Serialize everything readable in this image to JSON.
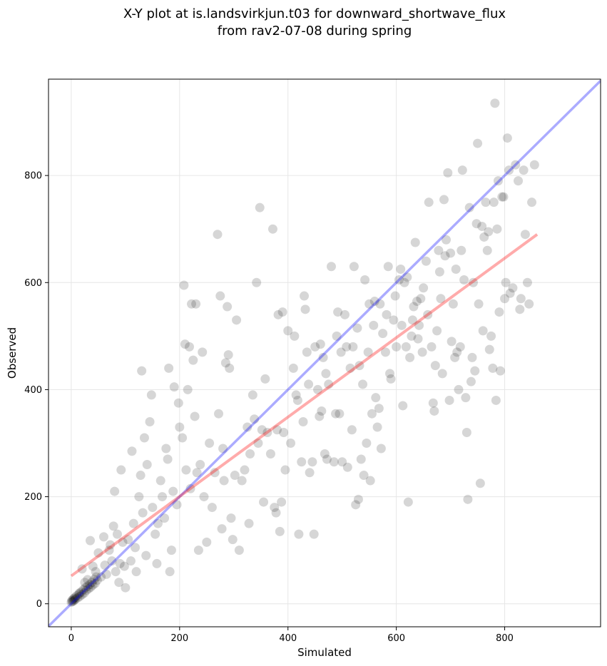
{
  "chart_data": {
    "type": "scatter",
    "title": "X-Y plot at is.landsvirkjun.t03 for downward_shortwave_flux",
    "subtitle": "from rav2-07-08 during spring",
    "xlabel": "Simulated",
    "ylabel": "Observed",
    "xlim": [
      -42,
      977
    ],
    "ylim": [
      -43,
      980
    ],
    "xticks": [
      0,
      200,
      400,
      600,
      800
    ],
    "yticks": [
      0,
      200,
      400,
      600,
      800
    ],
    "grid": true,
    "point_color": "#000000",
    "one_to_one_line": {
      "x": [
        -42,
        977
      ],
      "y": [
        -42,
        977
      ],
      "color": "#0000ff"
    },
    "fit_line": {
      "x": [
        0,
        860
      ],
      "y": [
        52,
        690
      ],
      "color": "#ff0000"
    },
    "points": [
      [
        0,
        3
      ],
      [
        1,
        6
      ],
      [
        2,
        4
      ],
      [
        3,
        8
      ],
      [
        4,
        5
      ],
      [
        5,
        10
      ],
      [
        6,
        7
      ],
      [
        7,
        12
      ],
      [
        8,
        9
      ],
      [
        10,
        15
      ],
      [
        12,
        11
      ],
      [
        14,
        18
      ],
      [
        15,
        20
      ],
      [
        16,
        14
      ],
      [
        18,
        22
      ],
      [
        20,
        17
      ],
      [
        22,
        26
      ],
      [
        24,
        20
      ],
      [
        26,
        30
      ],
      [
        28,
        25
      ],
      [
        30,
        33
      ],
      [
        32,
        28
      ],
      [
        34,
        36
      ],
      [
        36,
        31
      ],
      [
        38,
        40
      ],
      [
        40,
        35
      ],
      [
        42,
        45
      ],
      [
        44,
        38
      ],
      [
        46,
        50
      ],
      [
        48,
        44
      ],
      [
        20,
        65
      ],
      [
        25,
        40
      ],
      [
        30,
        45
      ],
      [
        35,
        118
      ],
      [
        40,
        70
      ],
      [
        45,
        60
      ],
      [
        50,
        95
      ],
      [
        55,
        50
      ],
      [
        60,
        125
      ],
      [
        62,
        72
      ],
      [
        65,
        55
      ],
      [
        70,
        100
      ],
      [
        72,
        110
      ],
      [
        75,
        80
      ],
      [
        78,
        145
      ],
      [
        80,
        210
      ],
      [
        82,
        60
      ],
      [
        85,
        130
      ],
      [
        88,
        40
      ],
      [
        90,
        75
      ],
      [
        92,
        250
      ],
      [
        95,
        115
      ],
      [
        98,
        70
      ],
      [
        100,
        30
      ],
      [
        105,
        120
      ],
      [
        110,
        80
      ],
      [
        112,
        285
      ],
      [
        115,
        150
      ],
      [
        118,
        105
      ],
      [
        120,
        60
      ],
      [
        125,
        200
      ],
      [
        128,
        240
      ],
      [
        130,
        435
      ],
      [
        132,
        170
      ],
      [
        135,
        310
      ],
      [
        138,
        90
      ],
      [
        140,
        260
      ],
      [
        145,
        340
      ],
      [
        148,
        390
      ],
      [
        150,
        180
      ],
      [
        155,
        130
      ],
      [
        158,
        75
      ],
      [
        160,
        150
      ],
      [
        165,
        230
      ],
      [
        168,
        200
      ],
      [
        172,
        160
      ],
      [
        175,
        290
      ],
      [
        178,
        270
      ],
      [
        180,
        440
      ],
      [
        182,
        60
      ],
      [
        185,
        100
      ],
      [
        188,
        210
      ],
      [
        190,
        405
      ],
      [
        195,
        185
      ],
      [
        198,
        375
      ],
      [
        200,
        330
      ],
      [
        205,
        310
      ],
      [
        208,
        595
      ],
      [
        210,
        485
      ],
      [
        212,
        250
      ],
      [
        215,
        400
      ],
      [
        218,
        480
      ],
      [
        220,
        215
      ],
      [
        222,
        560
      ],
      [
        225,
        455
      ],
      [
        228,
        350
      ],
      [
        230,
        560
      ],
      [
        232,
        245
      ],
      [
        235,
        100
      ],
      [
        238,
        260
      ],
      [
        242,
        470
      ],
      [
        245,
        200
      ],
      [
        250,
        115
      ],
      [
        255,
        300
      ],
      [
        260,
        180
      ],
      [
        265,
        245
      ],
      [
        270,
        690
      ],
      [
        272,
        355
      ],
      [
        275,
        575
      ],
      [
        278,
        140
      ],
      [
        280,
        290
      ],
      [
        282,
        230
      ],
      [
        285,
        450
      ],
      [
        288,
        555
      ],
      [
        290,
        465
      ],
      [
        292,
        440
      ],
      [
        295,
        160
      ],
      [
        298,
        120
      ],
      [
        302,
        240
      ],
      [
        305,
        530
      ],
      [
        310,
        100
      ],
      [
        315,
        230
      ],
      [
        320,
        250
      ],
      [
        325,
        330
      ],
      [
        328,
        150
      ],
      [
        330,
        280
      ],
      [
        335,
        390
      ],
      [
        338,
        345
      ],
      [
        342,
        600
      ],
      [
        345,
        300
      ],
      [
        348,
        740
      ],
      [
        352,
        325
      ],
      [
        355,
        190
      ],
      [
        358,
        420
      ],
      [
        362,
        320
      ],
      [
        368,
        280
      ],
      [
        372,
        700
      ],
      [
        375,
        180
      ],
      [
        378,
        170
      ],
      [
        380,
        325
      ],
      [
        382,
        540
      ],
      [
        385,
        135
      ],
      [
        388,
        190
      ],
      [
        390,
        545
      ],
      [
        392,
        320
      ],
      [
        395,
        250
      ],
      [
        400,
        510
      ],
      [
        405,
        300
      ],
      [
        410,
        440
      ],
      [
        412,
        500
      ],
      [
        415,
        390
      ],
      [
        418,
        380
      ],
      [
        420,
        130
      ],
      [
        425,
        265
      ],
      [
        428,
        340
      ],
      [
        430,
        575
      ],
      [
        432,
        550
      ],
      [
        435,
        470
      ],
      [
        438,
        410
      ],
      [
        440,
        245
      ],
      [
        445,
        265
      ],
      [
        448,
        130
      ],
      [
        450,
        480
      ],
      [
        455,
        400
      ],
      [
        458,
        350
      ],
      [
        460,
        485
      ],
      [
        462,
        360
      ],
      [
        465,
        460
      ],
      [
        468,
        280
      ],
      [
        470,
        430
      ],
      [
        472,
        270
      ],
      [
        475,
        410
      ],
      [
        480,
        630
      ],
      [
        485,
        265
      ],
      [
        488,
        355
      ],
      [
        490,
        500
      ],
      [
        492,
        545
      ],
      [
        495,
        355
      ],
      [
        498,
        470
      ],
      [
        500,
        265
      ],
      [
        505,
        540
      ],
      [
        508,
        480
      ],
      [
        510,
        255
      ],
      [
        515,
        440
      ],
      [
        518,
        325
      ],
      [
        520,
        480
      ],
      [
        522,
        630
      ],
      [
        525,
        185
      ],
      [
        528,
        515
      ],
      [
        530,
        195
      ],
      [
        532,
        445
      ],
      [
        535,
        270
      ],
      [
        538,
        410
      ],
      [
        540,
        240
      ],
      [
        542,
        605
      ],
      [
        545,
        300
      ],
      [
        548,
        470
      ],
      [
        550,
        560
      ],
      [
        552,
        230
      ],
      [
        555,
        355
      ],
      [
        558,
        520
      ],
      [
        560,
        565
      ],
      [
        562,
        385
      ],
      [
        565,
        330
      ],
      [
        568,
        365
      ],
      [
        570,
        560
      ],
      [
        572,
        290
      ],
      [
        575,
        505
      ],
      [
        580,
        470
      ],
      [
        582,
        540
      ],
      [
        585,
        630
      ],
      [
        588,
        430
      ],
      [
        590,
        420
      ],
      [
        595,
        530
      ],
      [
        598,
        575
      ],
      [
        600,
        480
      ],
      [
        605,
        605
      ],
      [
        608,
        625
      ],
      [
        610,
        520
      ],
      [
        612,
        370
      ],
      [
        615,
        600
      ],
      [
        618,
        480
      ],
      [
        620,
        610
      ],
      [
        622,
        190
      ],
      [
        625,
        460
      ],
      [
        628,
        500
      ],
      [
        630,
        530
      ],
      [
        632,
        555
      ],
      [
        635,
        675
      ],
      [
        638,
        565
      ],
      [
        640,
        495
      ],
      [
        642,
        520
      ],
      [
        645,
        570
      ],
      [
        648,
        470
      ],
      [
        650,
        590
      ],
      [
        655,
        640
      ],
      [
        658,
        540
      ],
      [
        660,
        750
      ],
      [
        665,
        480
      ],
      [
        668,
        375
      ],
      [
        670,
        360
      ],
      [
        672,
        445
      ],
      [
        675,
        510
      ],
      [
        678,
        660
      ],
      [
        680,
        620
      ],
      [
        682,
        570
      ],
      [
        685,
        430
      ],
      [
        688,
        755
      ],
      [
        690,
        650
      ],
      [
        692,
        680
      ],
      [
        695,
        805
      ],
      [
        698,
        380
      ],
      [
        700,
        655
      ],
      [
        702,
        490
      ],
      [
        705,
        560
      ],
      [
        708,
        460
      ],
      [
        710,
        625
      ],
      [
        712,
        470
      ],
      [
        715,
        400
      ],
      [
        718,
        480
      ],
      [
        720,
        660
      ],
      [
        722,
        810
      ],
      [
        725,
        605
      ],
      [
        728,
        385
      ],
      [
        730,
        320
      ],
      [
        732,
        195
      ],
      [
        735,
        740
      ],
      [
        738,
        415
      ],
      [
        740,
        460
      ],
      [
        742,
        600
      ],
      [
        745,
        435
      ],
      [
        748,
        710
      ],
      [
        750,
        860
      ],
      [
        752,
        560
      ],
      [
        755,
        225
      ],
      [
        758,
        705
      ],
      [
        760,
        510
      ],
      [
        762,
        685
      ],
      [
        765,
        750
      ],
      [
        768,
        660
      ],
      [
        770,
        695
      ],
      [
        772,
        475
      ],
      [
        775,
        500
      ],
      [
        778,
        440
      ],
      [
        780,
        750
      ],
      [
        782,
        935
      ],
      [
        784,
        380
      ],
      [
        786,
        700
      ],
      [
        788,
        790
      ],
      [
        790,
        545
      ],
      [
        792,
        435
      ],
      [
        795,
        760
      ],
      [
        798,
        760
      ],
      [
        800,
        570
      ],
      [
        802,
        600
      ],
      [
        805,
        870
      ],
      [
        808,
        810
      ],
      [
        810,
        580
      ],
      [
        815,
        590
      ],
      [
        820,
        820
      ],
      [
        825,
        790
      ],
      [
        828,
        550
      ],
      [
        830,
        570
      ],
      [
        835,
        810
      ],
      [
        838,
        690
      ],
      [
        842,
        600
      ],
      [
        845,
        560
      ],
      [
        850,
        750
      ],
      [
        855,
        820
      ]
    ]
  }
}
